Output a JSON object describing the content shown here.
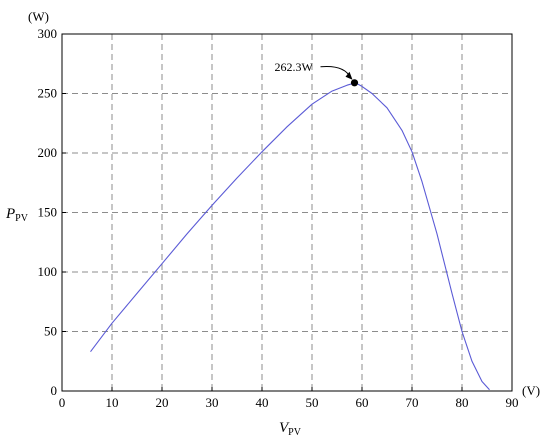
{
  "chart_data": {
    "type": "line",
    "x_unit": "(V)",
    "y_unit": "(W)",
    "xlabel": "V",
    "xlabel_sub": "PV",
    "ylabel": "P",
    "ylabel_sub": "PV",
    "xlim": [
      0,
      90
    ],
    "ylim": [
      0,
      300
    ],
    "x_ticks": [
      0,
      10,
      20,
      30,
      40,
      50,
      60,
      70,
      80,
      90
    ],
    "y_ticks": [
      0,
      50,
      100,
      150,
      200,
      250,
      300
    ],
    "grid": true,
    "series": [
      {
        "color": "#5b5bd6",
        "x": [
          5.7,
          10,
          15,
          20,
          25,
          30,
          35,
          40,
          45,
          50,
          54,
          57,
          58.7,
          60,
          62,
          65,
          68,
          70,
          72,
          75,
          78,
          80,
          82,
          84,
          85.5
        ],
        "y": [
          33,
          57,
          82,
          107,
          132,
          156,
          179,
          201,
          222,
          241,
          252,
          257,
          259,
          256,
          250,
          238,
          219,
          201,
          176,
          132,
          82,
          50,
          25,
          8,
          1
        ]
      }
    ],
    "annotations": [
      {
        "text": "262.3W",
        "x": 58.5,
        "y": 259
      }
    ]
  }
}
